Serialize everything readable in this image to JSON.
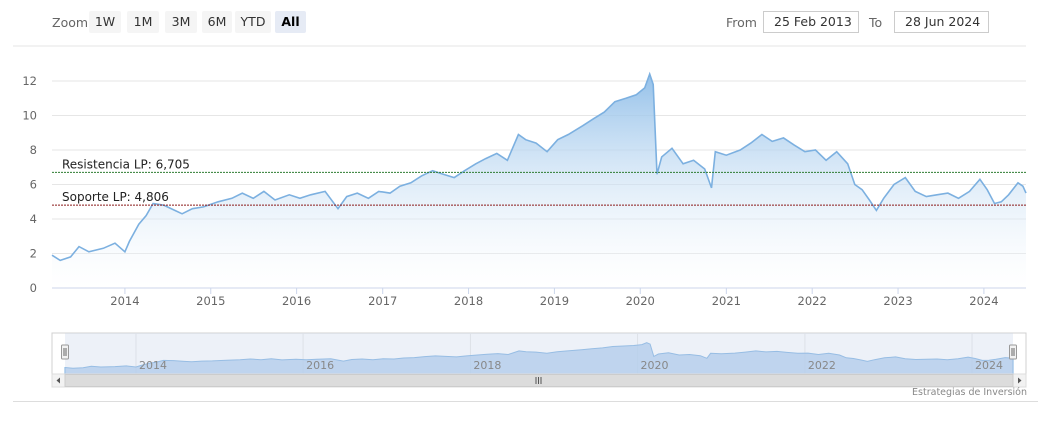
{
  "toolbar": {
    "zoom_label": "Zoom",
    "zoom_buttons": [
      "1W",
      "1M",
      "3M",
      "6M",
      "YTD",
      "All"
    ],
    "active_zoom": "All",
    "from_label": "From",
    "from_value": "25 Feb 2013",
    "to_label": "To",
    "to_value": "28 Jun 2024"
  },
  "credit": "Estrategias de Inversión",
  "colors": {
    "series_line": "#7cb0e0",
    "series_fill_top": "#8ebde8",
    "resistance_line": "#2e7d32",
    "support_line": "#8b1a1a",
    "navigator_mask": "#ccd6eb"
  },
  "chart_data": {
    "type": "area",
    "title": "",
    "xlabel": "",
    "ylabel": "",
    "ylim": [
      0,
      13
    ],
    "yticks": [
      0,
      2,
      4,
      6,
      8,
      10,
      12
    ],
    "xlim": [
      "2013-02-25",
      "2024-06-28"
    ],
    "xticks": [
      "2014",
      "2015",
      "2016",
      "2017",
      "2018",
      "2019",
      "2020",
      "2021",
      "2022",
      "2023",
      "2024"
    ],
    "grid": true,
    "series": [
      {
        "name": "",
        "points": [
          [
            "2013-02-25",
            1.9
          ],
          [
            "2013-04-01",
            1.6
          ],
          [
            "2013-05-15",
            1.8
          ],
          [
            "2013-06-20",
            2.4
          ],
          [
            "2013-08-01",
            2.1
          ],
          [
            "2013-10-01",
            2.3
          ],
          [
            "2013-11-20",
            2.6
          ],
          [
            "2014-01-01",
            2.1
          ],
          [
            "2014-01-20",
            2.7
          ],
          [
            "2014-03-01",
            3.7
          ],
          [
            "2014-04-01",
            4.2
          ],
          [
            "2014-05-01",
            4.9
          ],
          [
            "2014-06-15",
            4.8
          ],
          [
            "2014-08-01",
            4.5
          ],
          [
            "2014-09-01",
            4.3
          ],
          [
            "2014-10-15",
            4.6
          ],
          [
            "2014-12-01",
            4.7
          ],
          [
            "2015-02-01",
            5.0
          ],
          [
            "2015-04-01",
            5.2
          ],
          [
            "2015-05-15",
            5.5
          ],
          [
            "2015-07-01",
            5.2
          ],
          [
            "2015-08-15",
            5.6
          ],
          [
            "2015-10-01",
            5.1
          ],
          [
            "2015-12-01",
            5.4
          ],
          [
            "2016-01-15",
            5.2
          ],
          [
            "2016-03-01",
            5.4
          ],
          [
            "2016-05-01",
            5.6
          ],
          [
            "2016-06-25",
            4.6
          ],
          [
            "2016-08-01",
            5.3
          ],
          [
            "2016-09-15",
            5.5
          ],
          [
            "2016-11-01",
            5.2
          ],
          [
            "2016-12-15",
            5.6
          ],
          [
            "2017-02-01",
            5.5
          ],
          [
            "2017-03-15",
            5.9
          ],
          [
            "2017-05-01",
            6.1
          ],
          [
            "2017-06-15",
            6.5
          ],
          [
            "2017-08-01",
            6.8
          ],
          [
            "2017-09-15",
            6.6
          ],
          [
            "2017-11-01",
            6.4
          ],
          [
            "2017-12-15",
            6.8
          ],
          [
            "2018-02-01",
            7.2
          ],
          [
            "2018-03-15",
            7.5
          ],
          [
            "2018-05-01",
            7.8
          ],
          [
            "2018-06-15",
            7.4
          ],
          [
            "2018-08-01",
            8.9
          ],
          [
            "2018-09-01",
            8.6
          ],
          [
            "2018-10-15",
            8.4
          ],
          [
            "2018-12-01",
            7.9
          ],
          [
            "2019-01-15",
            8.6
          ],
          [
            "2019-03-01",
            8.9
          ],
          [
            "2019-05-01",
            9.4
          ],
          [
            "2019-06-15",
            9.8
          ],
          [
            "2019-08-01",
            10.2
          ],
          [
            "2019-09-15",
            10.8
          ],
          [
            "2019-11-01",
            11.0
          ],
          [
            "2019-12-15",
            11.2
          ],
          [
            "2020-01-20",
            11.6
          ],
          [
            "2020-02-10",
            12.4
          ],
          [
            "2020-02-25",
            11.8
          ],
          [
            "2020-03-12",
            6.6
          ],
          [
            "2020-04-01",
            7.6
          ],
          [
            "2020-05-15",
            8.1
          ],
          [
            "2020-07-01",
            7.2
          ],
          [
            "2020-08-15",
            7.4
          ],
          [
            "2020-10-01",
            6.9
          ],
          [
            "2020-10-30",
            5.8
          ],
          [
            "2020-11-15",
            7.9
          ],
          [
            "2021-01-01",
            7.7
          ],
          [
            "2021-03-01",
            8.0
          ],
          [
            "2021-04-15",
            8.4
          ],
          [
            "2021-06-01",
            8.9
          ],
          [
            "2021-07-15",
            8.5
          ],
          [
            "2021-09-01",
            8.7
          ],
          [
            "2021-10-15",
            8.3
          ],
          [
            "2021-12-01",
            7.9
          ],
          [
            "2022-01-15",
            8.0
          ],
          [
            "2022-03-01",
            7.4
          ],
          [
            "2022-04-15",
            7.9
          ],
          [
            "2022-06-01",
            7.2
          ],
          [
            "2022-07-01",
            6.0
          ],
          [
            "2022-08-01",
            5.7
          ],
          [
            "2022-09-01",
            5.1
          ],
          [
            "2022-10-01",
            4.5
          ],
          [
            "2022-11-01",
            5.2
          ],
          [
            "2022-12-15",
            6.0
          ],
          [
            "2023-02-01",
            6.4
          ],
          [
            "2023-03-15",
            5.6
          ],
          [
            "2023-05-01",
            5.3
          ],
          [
            "2023-06-15",
            5.4
          ],
          [
            "2023-08-01",
            5.5
          ],
          [
            "2023-09-15",
            5.2
          ],
          [
            "2023-11-01",
            5.6
          ],
          [
            "2023-12-15",
            6.3
          ],
          [
            "2024-01-15",
            5.7
          ],
          [
            "2024-02-15",
            4.9
          ],
          [
            "2024-03-15",
            5.0
          ],
          [
            "2024-04-15",
            5.4
          ],
          [
            "2024-05-25",
            6.1
          ],
          [
            "2024-06-15",
            5.9
          ],
          [
            "2024-06-28",
            5.5
          ]
        ]
      }
    ],
    "plot_lines": [
      {
        "label": "Resistencia LP: 6,705",
        "value": 6.705
      },
      {
        "label": "Soporte LP: 4,806",
        "value": 4.806
      }
    ],
    "navigator": {
      "xticks": [
        "2014",
        "2016",
        "2018",
        "2020",
        "2022",
        "2024"
      ]
    }
  }
}
